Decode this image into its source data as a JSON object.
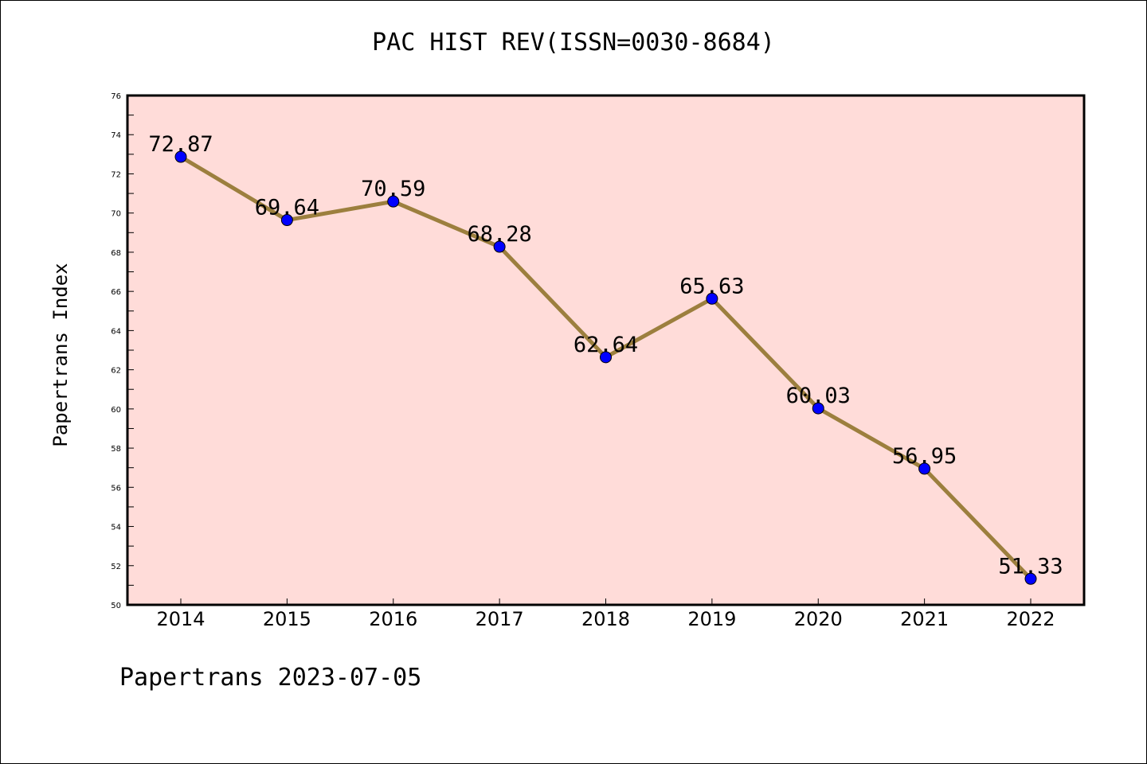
{
  "chart_data": {
    "type": "line",
    "title": "PAC HIST REV(ISSN=0030-8684)",
    "ylabel": "Papertrans Index",
    "xlabel": "",
    "footer": "Papertrans 2023-07-05",
    "x": [
      "2014",
      "2015",
      "2016",
      "2017",
      "2018",
      "2019",
      "2020",
      "2021",
      "2022"
    ],
    "series": [
      {
        "values": [
          72.87,
          69.64,
          70.59,
          68.28,
          62.64,
          65.63,
          60.03,
          56.95,
          51.33
        ],
        "labels": [
          "72.87",
          "69.64",
          "70.59",
          "68.28",
          "62.64",
          "65.63",
          "60.03",
          "56.95",
          "51.33"
        ]
      }
    ],
    "yticks": [
      "50",
      "52",
      "54",
      "56",
      "58",
      "60",
      "62",
      "64",
      "66",
      "68",
      "70",
      "72",
      "74",
      "76"
    ],
    "ylim": [
      50,
      76
    ],
    "grid": false,
    "colors": {
      "plot_background": "#ffdcd9",
      "line": "#9c7f3e",
      "marker": "#0000ff"
    }
  }
}
